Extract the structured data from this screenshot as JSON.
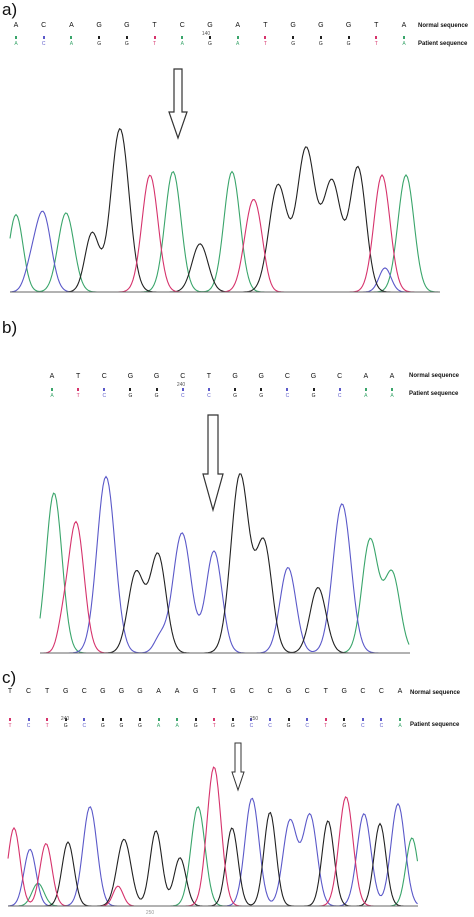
{
  "panels": [
    {
      "id": "a",
      "label": "a)",
      "normal_label": "Normal sequence",
      "patient_label": "Patient sequence",
      "normal": [
        "A",
        "C",
        "A",
        "G",
        "G",
        "T",
        "C",
        "G",
        "A",
        "T",
        "G",
        "G",
        "G",
        "T",
        "A"
      ],
      "patient": [
        "A",
        "C",
        "A",
        "G",
        "G",
        "T",
        "A",
        "G",
        "A",
        "T",
        "G",
        "G",
        "G",
        "T",
        "A"
      ],
      "position_label": "140",
      "position_index": 7
    },
    {
      "id": "b",
      "label": "b)",
      "normal_label": "Normal sequence",
      "patient_label": "Patient sequence",
      "normal": [
        "A",
        "T",
        "C",
        "G",
        "G",
        "C",
        "T",
        "G",
        "G",
        "C",
        "G",
        "C",
        "A",
        "A"
      ],
      "patient": [
        "A",
        "T",
        "C",
        "G",
        "G",
        "C",
        "C",
        "G",
        "G",
        "C",
        "G",
        "C",
        "A",
        "A"
      ],
      "position_label": "240",
      "position_index": 5
    },
    {
      "id": "c",
      "label": "c)",
      "normal_label": "Normal sequence",
      "patient_label": "Patient sequence",
      "normal": [
        "T",
        "C",
        "T",
        "G",
        "C",
        "G",
        "G",
        "G",
        "A",
        "A",
        "G",
        "T",
        "G",
        "C",
        "C",
        "G",
        "C",
        "T",
        "G",
        "C",
        "C",
        "A"
      ],
      "patient": [
        "T",
        "C",
        "T",
        "G",
        "C",
        "G",
        "G",
        "G",
        "A",
        "A",
        "G",
        "T",
        "G",
        "C",
        "C",
        "G",
        "C",
        "T",
        "G",
        "C",
        "C",
        "A"
      ],
      "position_labels": [
        {
          "text": "240",
          "index": 3
        },
        {
          "text": "250",
          "index": 12
        }
      ],
      "axis_label": "250"
    }
  ],
  "colors": {
    "A": "#3aa56b",
    "C": "#5b59c9",
    "G": "#222222",
    "T": "#d6336c"
  }
}
